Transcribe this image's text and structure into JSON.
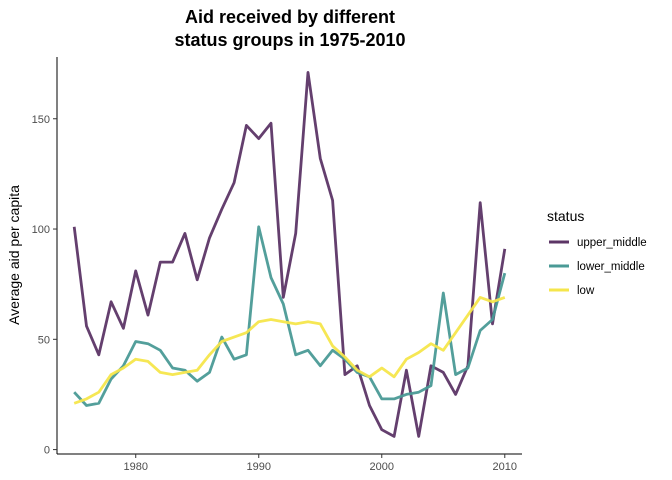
{
  "chart_data": {
    "type": "line",
    "title": [
      "Aid received by different",
      "status groups in 1975-2010"
    ],
    "xlabel": "",
    "ylabel": "Average aid per capita",
    "xlim": [
      1973.6,
      2011.4
    ],
    "ylim": [
      -2,
      178
    ],
    "xticks": [
      1980,
      1990,
      2000,
      2010
    ],
    "yticks": [
      0,
      50,
      100,
      150
    ],
    "grid": false,
    "legend": {
      "title": "status",
      "position": "right"
    },
    "x": [
      1975,
      1976,
      1977,
      1978,
      1979,
      1980,
      1981,
      1982,
      1983,
      1984,
      1985,
      1986,
      1987,
      1988,
      1989,
      1990,
      1991,
      1992,
      1993,
      1994,
      1995,
      1996,
      1997,
      1998,
      1999,
      2000,
      2001,
      2002,
      2003,
      2004,
      2005,
      2006,
      2007,
      2008,
      2009,
      2010
    ],
    "series": [
      {
        "name": "upper_middle",
        "color": "#5c3566",
        "values": [
          101,
          56,
          43,
          67,
          55,
          81,
          61,
          85,
          85,
          98,
          77,
          96,
          109,
          121,
          147,
          141,
          148,
          69,
          98,
          171,
          132,
          113,
          34,
          38,
          20,
          9,
          6,
          36,
          6,
          38,
          35,
          25,
          38,
          112,
          57,
          91
        ]
      },
      {
        "name": "lower_middle",
        "color": "#4a9a96",
        "values": [
          26,
          20,
          21,
          32,
          38,
          49,
          48,
          45,
          37,
          36,
          31,
          35,
          51,
          41,
          43,
          101,
          78,
          66,
          43,
          45,
          38,
          45,
          41,
          35,
          33,
          23,
          23,
          25,
          26,
          29,
          71,
          34,
          37,
          54,
          59,
          80
        ]
      },
      {
        "name": "low",
        "color": "#f5e64b",
        "values": [
          21,
          23,
          26,
          34,
          37,
          41,
          40,
          35,
          34,
          35,
          36,
          43,
          49,
          51,
          53,
          58,
          59,
          58,
          57,
          58,
          57,
          47,
          42,
          36,
          33,
          37,
          33,
          41,
          44,
          48,
          45,
          53,
          61,
          69,
          67,
          69
        ]
      }
    ]
  }
}
